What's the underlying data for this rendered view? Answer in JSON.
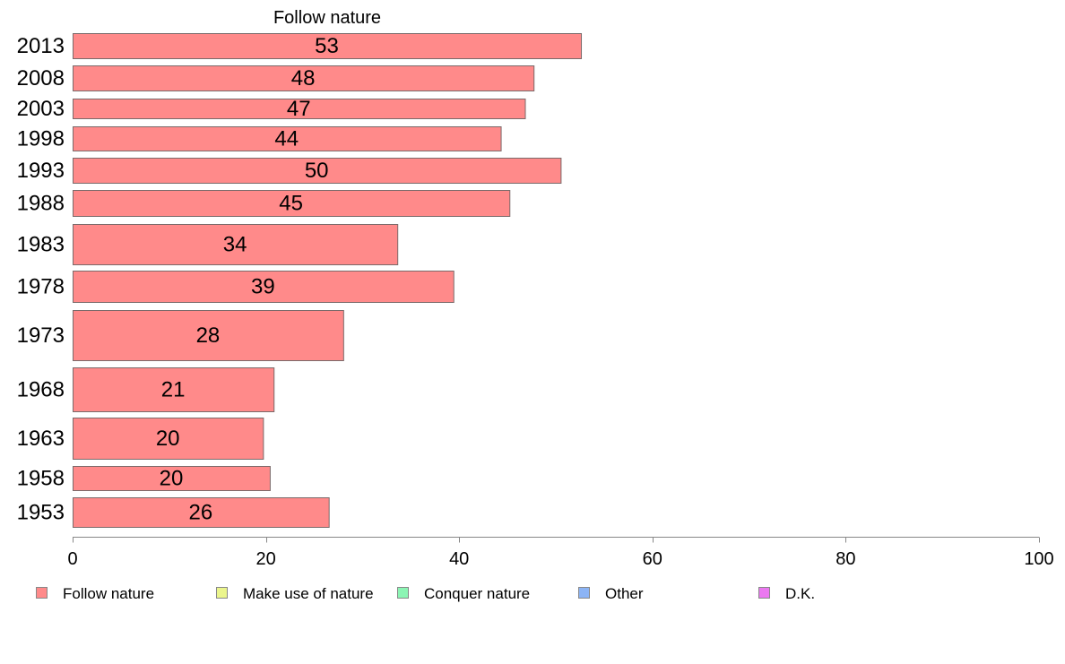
{
  "chart_data": {
    "type": "bar",
    "orientation": "horizontal",
    "title": "Follow nature",
    "categories": [
      "2013",
      "2008",
      "2003",
      "1998",
      "1993",
      "1988",
      "1983",
      "1978",
      "1973",
      "1968",
      "1963",
      "1958",
      "1953"
    ],
    "series": [
      {
        "name": "Follow nature",
        "values": [
          52.6,
          47.7,
          46.8,
          44.3,
          50.5,
          45.2,
          33.6,
          39.4,
          28.0,
          20.8,
          19.7,
          20.4,
          26.5
        ]
      }
    ],
    "data_labels": [
      "53",
      "48",
      "47",
      "44",
      "50",
      "45",
      "34",
      "39",
      "28",
      "21",
      "20",
      "20",
      "26"
    ],
    "xlim": [
      0,
      100
    ],
    "xticks": [
      "0",
      "20",
      "40",
      "60",
      "80",
      "100"
    ],
    "grid": false,
    "legend_position": "bottom",
    "legend": [
      {
        "label": "Follow nature",
        "color": "#ff8a8a"
      },
      {
        "label": "Make use of nature",
        "color": "#ebf58c"
      },
      {
        "label": "Conquer nature",
        "color": "#8cf5b4"
      },
      {
        "label": "Other",
        "color": "#8cb4f5"
      },
      {
        "label": "D.K.",
        "color": "#eb78f0"
      }
    ],
    "bar_color": "#ff8a8a"
  }
}
